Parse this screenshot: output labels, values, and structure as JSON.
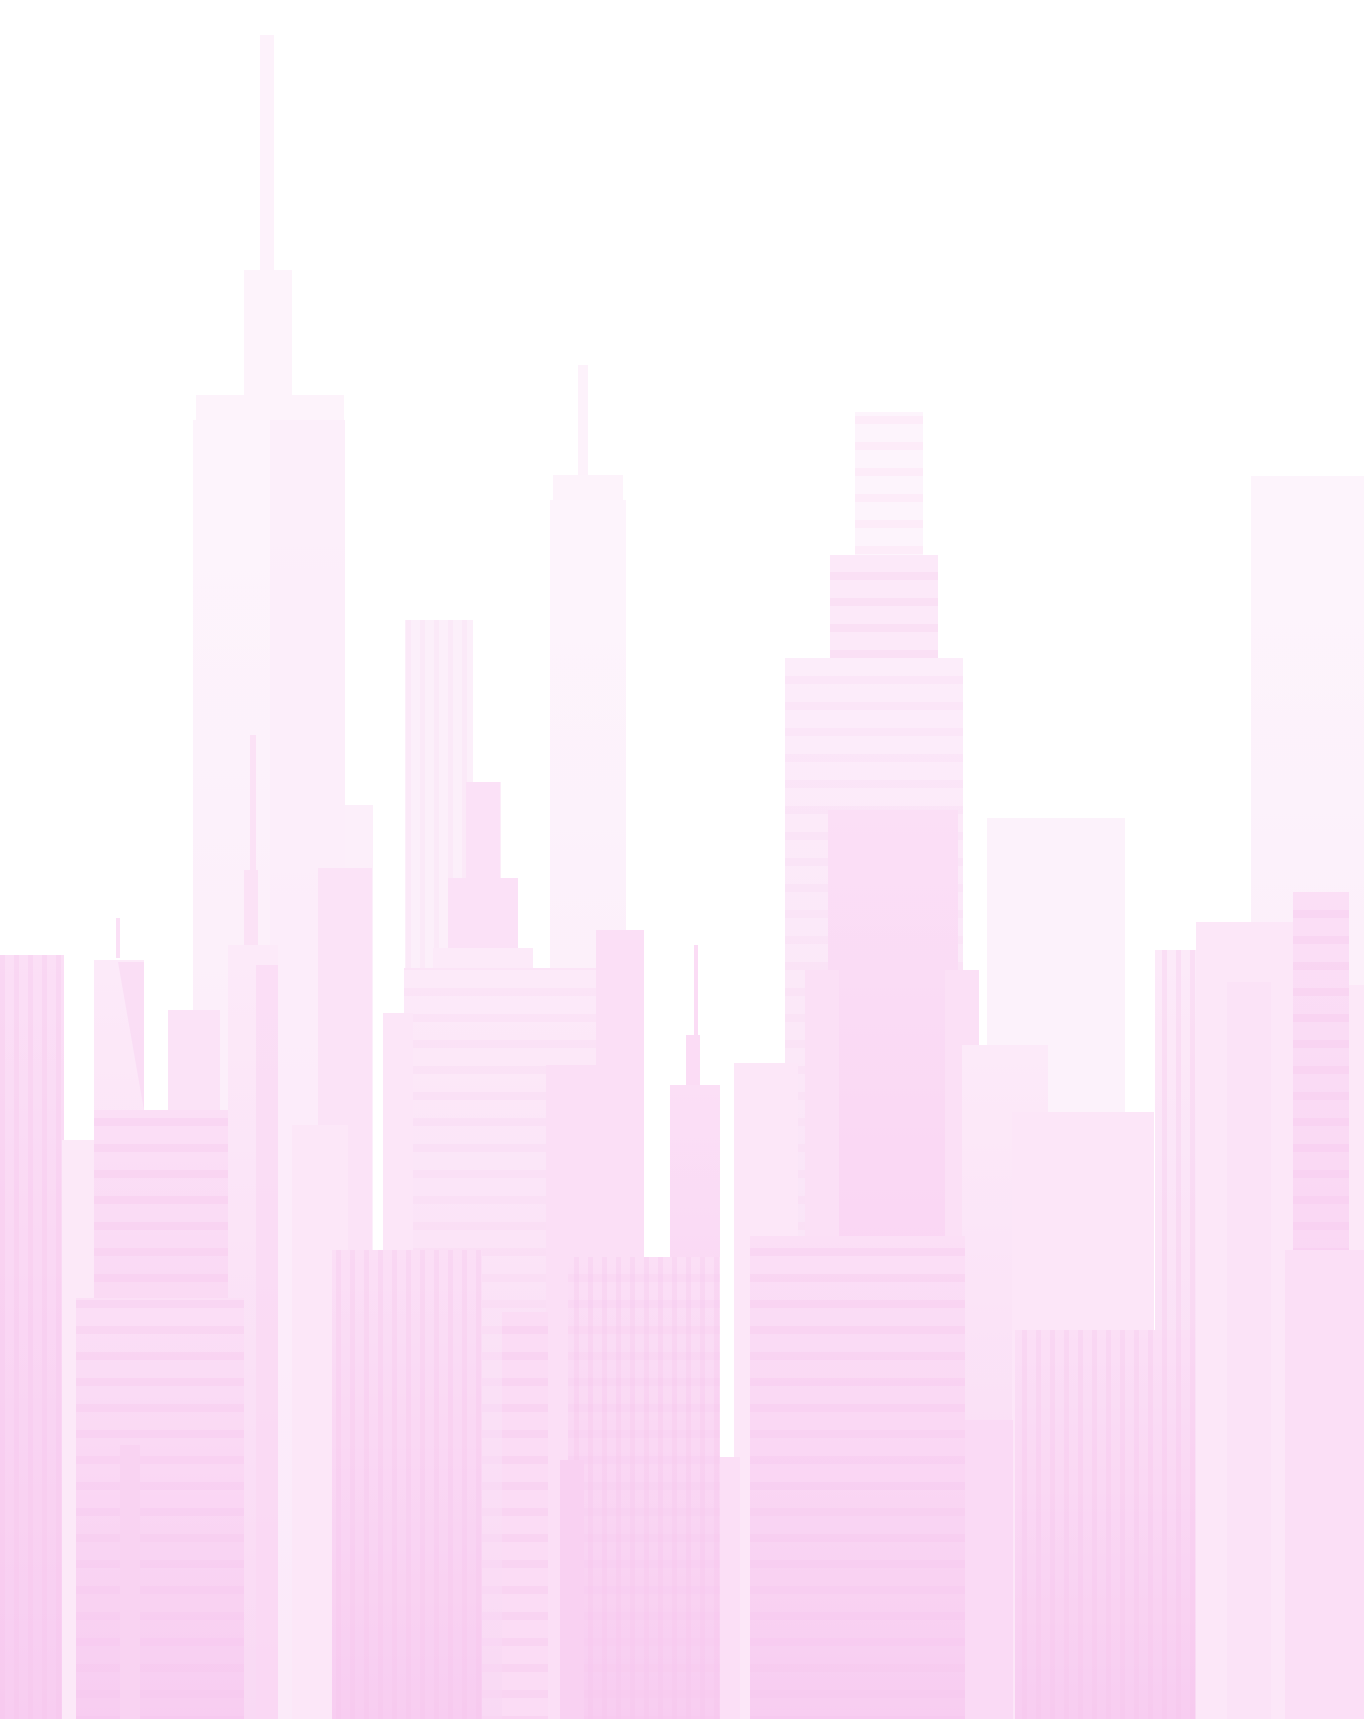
{
  "scene": {
    "description_type": "pastel city skyline illustration",
    "colors": {
      "background": "#ffffff",
      "far_building": "#fdf1fb",
      "mid_building": "#fbe3f7",
      "near_building": "#f9d2f2",
      "window_stripe": "#f6c8ef",
      "spire": "#fcebf9"
    }
  }
}
